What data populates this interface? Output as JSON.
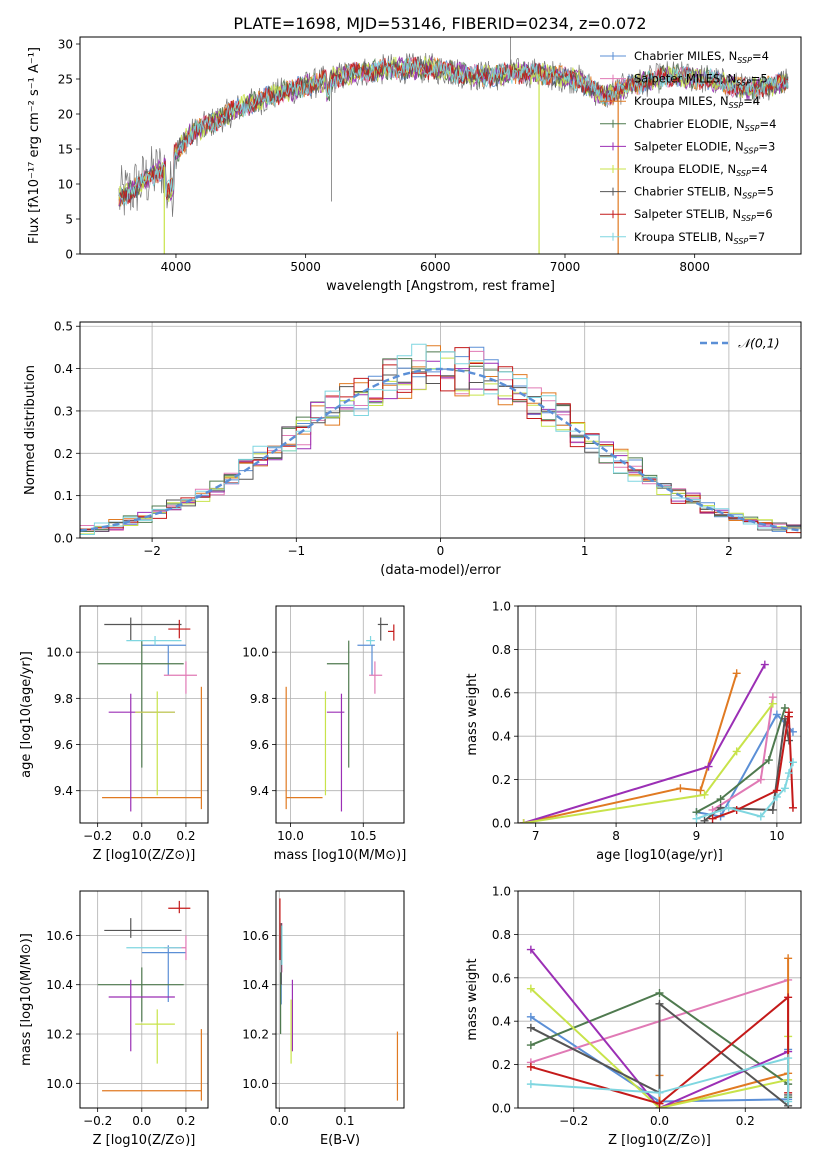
{
  "figure": {
    "title": "PLATE=1698, MJD=53146, FIBERID=0234, z=0.072"
  },
  "colors": {
    "chabrier_miles": "#5b8fd6",
    "salpeter_miles": "#e07ab5",
    "kroupa_miles": "#e07a22",
    "chabrier_elodie": "#4f7a4f",
    "salpeter_elodie": "#9b2fb5",
    "kroupa_elodie": "#c8e34a",
    "chabrier_stelib": "#555555",
    "salpeter_stelib": "#c41a1a",
    "kroupa_stelib": "#7fd6e0",
    "gaussian": "#5b8fd6",
    "grid": "#b0b0b0"
  },
  "chart_data": [
    {
      "id": "spectrum",
      "type": "line",
      "title": "PLATE=1698, MJD=53146, FIBERID=0234, z=0.072",
      "xlabel": "wavelength [Angstrom, rest frame]",
      "ylabel": "Flux [fλ10⁻¹⁷ erg cm⁻² s⁻¹ A⁻¹]",
      "xlim": [
        3260,
        8820
      ],
      "ylim": [
        0,
        31
      ],
      "xticks": [
        4000,
        5000,
        6000,
        7000,
        8000
      ],
      "yticks": [
        0,
        5,
        10,
        15,
        20,
        25,
        30
      ],
      "grid": false,
      "legend_position": "top-right",
      "continuum_nodes": {
        "wavelength": [
          3560,
          3650,
          3800,
          3950,
          4100,
          4300,
          4500,
          4800,
          5100,
          5400,
          5700,
          6000,
          6300,
          6500,
          6700,
          6900,
          7100,
          7300,
          7500,
          7800,
          8100,
          8400,
          8700
        ],
        "flux": [
          8,
          9,
          11,
          13,
          17,
          19,
          21,
          23,
          24.5,
          26,
          26.5,
          26.5,
          25.5,
          25.5,
          26,
          25.5,
          25,
          22.5,
          24,
          25.5,
          25,
          23.5,
          24.5
        ]
      },
      "series": [
        {
          "name": "Chabrier MILES, N_SSP=4",
          "color_key": "chabrier_miles",
          "n_ssp": 4
        },
        {
          "name": "Salpeter MILES, N_SSP=5",
          "color_key": "salpeter_miles",
          "n_ssp": 5
        },
        {
          "name": "Kroupa MILES, N_SSP=4",
          "color_key": "kroupa_miles",
          "n_ssp": 4
        },
        {
          "name": "Chabrier ELODIE, N_SSP=4",
          "color_key": "chabrier_elodie",
          "n_ssp": 4
        },
        {
          "name": "Salpeter ELODIE, N_SSP=3",
          "color_key": "salpeter_elodie",
          "n_ssp": 3
        },
        {
          "name": "Kroupa ELODIE, N_SSP=4",
          "color_key": "kroupa_elodie",
          "n_ssp": 4
        },
        {
          "name": "Chabrier STELIB, N_SSP=5",
          "color_key": "chabrier_stelib",
          "n_ssp": 5
        },
        {
          "name": "Salpeter STELIB, N_SSP=6",
          "color_key": "salpeter_stelib",
          "n_ssp": 6
        },
        {
          "name": "Kroupa STELIB, N_SSP=7",
          "color_key": "kroupa_stelib",
          "n_ssp": 7
        }
      ],
      "model_drop_lines": [
        {
          "x": 3910,
          "color_key": "kroupa_elodie"
        },
        {
          "x": 6800,
          "color_key": "kroupa_elodie"
        },
        {
          "x": 7410,
          "color_key": "kroupa_miles"
        }
      ],
      "data_spikes": [
        {
          "x": 5200,
          "y": 7.5
        },
        {
          "x": 6580,
          "y": 31
        }
      ]
    },
    {
      "id": "residuals",
      "type": "histogram",
      "xlabel": "(data-model)/error",
      "ylabel": "Normed distribution",
      "xlim": [
        -2.5,
        2.5
      ],
      "ylim": [
        0,
        0.51
      ],
      "xticks": [
        -2,
        -1,
        0,
        1,
        2
      ],
      "yticks": [
        0.0,
        0.1,
        0.2,
        0.3,
        0.4,
        0.5
      ],
      "grid": true,
      "bin_width": 0.1,
      "legend": [
        {
          "label": "𝒩(0,1)",
          "style": "dashed",
          "color_key": "gaussian"
        }
      ],
      "legend_position": "top-right",
      "gaussian": {
        "mean": 0,
        "sigma": 1
      }
    },
    {
      "id": "age_vs_Z",
      "type": "errorbar",
      "xlabel": "Z [log10(Z/Z⊙)]",
      "ylabel": "age [log10(age/yr)]",
      "xlim": [
        -0.28,
        0.3
      ],
      "ylim": [
        9.26,
        10.2
      ],
      "xticks": [
        -0.2,
        0.0,
        0.2
      ],
      "yticks": [
        9.4,
        9.6,
        9.8,
        10.0
      ],
      "grid": true,
      "points": [
        {
          "series": "chabrier_miles",
          "x": 0.12,
          "y": 10.03,
          "xerr": [
            0.12,
            0.08
          ],
          "yerr": [
            0.13,
            0.0
          ]
        },
        {
          "series": "salpeter_miles",
          "x": 0.2,
          "y": 9.9,
          "xerr": [
            0.1,
            0.05
          ],
          "yerr": [
            0.08,
            0.06
          ]
        },
        {
          "series": "kroupa_miles",
          "x": 0.27,
          "y": 9.37,
          "xerr": [
            0.45,
            0.0
          ],
          "yerr": [
            0.05,
            0.48
          ]
        },
        {
          "series": "chabrier_elodie",
          "x": 0.0,
          "y": 9.95,
          "xerr": [
            0.2,
            0.19
          ],
          "yerr": [
            0.45,
            0.1
          ]
        },
        {
          "series": "salpeter_elodie",
          "x": -0.05,
          "y": 9.74,
          "xerr": [
            0.1,
            0.2
          ],
          "yerr": [
            0.43,
            0.08
          ]
        },
        {
          "series": "kroupa_elodie",
          "x": 0.07,
          "y": 9.74,
          "xerr": [
            0.1,
            0.08
          ],
          "yerr": [
            0.36,
            0.09
          ]
        },
        {
          "series": "chabrier_stelib",
          "x": -0.05,
          "y": 10.12,
          "xerr": [
            0.12,
            0.23
          ],
          "yerr": [
            0.07,
            0.03
          ]
        },
        {
          "series": "salpeter_stelib",
          "x": 0.17,
          "y": 10.1,
          "xerr": [
            0.05,
            0.05
          ],
          "yerr": [
            0.04,
            0.04
          ]
        },
        {
          "series": "kroupa_stelib",
          "x": 0.06,
          "y": 10.05,
          "xerr": [
            0.13,
            0.12
          ],
          "yerr": [
            0.02,
            0.02
          ]
        }
      ]
    },
    {
      "id": "age_vs_mass",
      "type": "errorbar",
      "xlabel": "mass [log10(M/M⊙)]",
      "ylabel": "",
      "xlim": [
        9.9,
        10.78
      ],
      "ylim": [
        9.26,
        10.2
      ],
      "xticks": [
        10.0,
        10.5
      ],
      "yticks": [
        9.4,
        9.6,
        9.8,
        10.0
      ],
      "grid": true,
      "points": [
        {
          "series": "chabrier_miles",
          "x": 10.56,
          "y": 10.03,
          "xerr": [
            0.1,
            0.02
          ],
          "yerr": [
            0.13,
            0.0
          ]
        },
        {
          "series": "salpeter_miles",
          "x": 10.58,
          "y": 9.9,
          "xerr": [
            0.04,
            0.05
          ],
          "yerr": [
            0.08,
            0.06
          ]
        },
        {
          "series": "kroupa_miles",
          "x": 9.97,
          "y": 9.37,
          "xerr": [
            0.0,
            0.25
          ],
          "yerr": [
            0.05,
            0.48
          ]
        },
        {
          "series": "chabrier_elodie",
          "x": 10.4,
          "y": 9.95,
          "xerr": [
            0.15,
            0.0
          ],
          "yerr": [
            0.45,
            0.1
          ]
        },
        {
          "series": "salpeter_elodie",
          "x": 10.35,
          "y": 9.74,
          "xerr": [
            0.1,
            0.02
          ],
          "yerr": [
            0.43,
            0.08
          ]
        },
        {
          "series": "kroupa_elodie",
          "x": 10.24,
          "y": 9.74,
          "xerr": [
            0.0,
            0.0
          ],
          "yerr": [
            0.36,
            0.09
          ]
        },
        {
          "series": "chabrier_stelib",
          "x": 10.62,
          "y": 10.12,
          "xerr": [
            0.02,
            0.05
          ],
          "yerr": [
            0.07,
            0.03
          ]
        },
        {
          "series": "salpeter_stelib",
          "x": 10.71,
          "y": 10.09,
          "xerr": [
            0.04,
            0.0
          ],
          "yerr": [
            0.04,
            0.03
          ]
        },
        {
          "series": "kroupa_stelib",
          "x": 10.55,
          "y": 10.05,
          "xerr": [
            0.03,
            0.03
          ],
          "yerr": [
            0.02,
            0.02
          ]
        }
      ]
    },
    {
      "id": "weight_vs_age",
      "type": "line",
      "xlabel": "age [log10(age/yr)]",
      "ylabel": "mass weight",
      "xlim": [
        6.78,
        10.3
      ],
      "ylim": [
        0,
        1.0
      ],
      "xticks": [
        7,
        8,
        9,
        10
      ],
      "yticks": [
        0.0,
        0.2,
        0.4,
        0.6,
        0.8,
        1.0
      ],
      "grid": true,
      "series": [
        {
          "series": "chabrier_miles",
          "x": [
            9.0,
            9.3,
            10.0,
            10.2
          ],
          "y": [
            0.05,
            0.03,
            0.5,
            0.42
          ]
        },
        {
          "series": "salpeter_miles",
          "x": [
            9.2,
            9.8,
            9.95
          ],
          "y": [
            0.06,
            0.2,
            0.58
          ]
        },
        {
          "series": "kroupa_miles",
          "x": [
            6.85,
            8.8,
            9.05,
            9.5
          ],
          "y": [
            0.0,
            0.16,
            0.15,
            0.69
          ]
        },
        {
          "series": "chabrier_elodie",
          "x": [
            9.0,
            9.3,
            9.9,
            10.1
          ],
          "y": [
            0.05,
            0.11,
            0.29,
            0.53
          ]
        },
        {
          "series": "salpeter_elodie",
          "x": [
            6.85,
            9.15,
            9.85
          ],
          "y": [
            0.0,
            0.26,
            0.73
          ]
        },
        {
          "series": "kroupa_elodie",
          "x": [
            6.85,
            9.1,
            9.5,
            9.95
          ],
          "y": [
            0.0,
            0.13,
            0.33,
            0.55
          ]
        },
        {
          "series": "chabrier_stelib",
          "x": [
            9.1,
            9.3,
            9.95,
            10.1,
            10.15
          ],
          "y": [
            0.01,
            0.07,
            0.06,
            0.48,
            0.38
          ]
        },
        {
          "series": "salpeter_stelib",
          "x": [
            9.2,
            9.5,
            10.0,
            10.15,
            10.15,
            10.2
          ],
          "y": [
            0.02,
            0.06,
            0.15,
            0.51,
            0.49,
            0.07
          ]
        },
        {
          "series": "kroupa_stelib",
          "x": [
            9.0,
            9.4,
            9.8,
            10.0,
            10.1,
            10.15,
            10.2
          ],
          "y": [
            0.02,
            0.07,
            0.03,
            0.12,
            0.16,
            0.23,
            0.28
          ]
        }
      ]
    },
    {
      "id": "mass_vs_Z",
      "type": "errorbar",
      "xlabel": "Z [log10(Z/Z⊙)]",
      "ylabel": "mass [log10(M/M⊙)]",
      "xlim": [
        -0.28,
        0.3
      ],
      "ylim": [
        9.9,
        10.78
      ],
      "xticks": [
        -0.2,
        0.0,
        0.2
      ],
      "yticks": [
        10.0,
        10.2,
        10.4,
        10.6
      ],
      "grid": true,
      "points": [
        {
          "series": "chabrier_miles",
          "x": 0.12,
          "y": 10.53,
          "xerr": [
            0.12,
            0.08
          ],
          "yerr": [
            0.2,
            0.03
          ]
        },
        {
          "series": "salpeter_miles",
          "x": 0.2,
          "y": 10.55,
          "xerr": [
            0.1,
            0.0
          ],
          "yerr": [
            0.05,
            0.05
          ]
        },
        {
          "series": "kroupa_miles",
          "x": 0.27,
          "y": 9.97,
          "xerr": [
            0.45,
            0.0
          ],
          "yerr": [
            0.04,
            0.25
          ]
        },
        {
          "series": "chabrier_elodie",
          "x": 0.0,
          "y": 10.4,
          "xerr": [
            0.2,
            0.19
          ],
          "yerr": [
            0.15,
            0.07
          ]
        },
        {
          "series": "salpeter_elodie",
          "x": -0.05,
          "y": 10.35,
          "xerr": [
            0.1,
            0.2
          ],
          "yerr": [
            0.22,
            0.07
          ]
        },
        {
          "series": "kroupa_elodie",
          "x": 0.07,
          "y": 10.24,
          "xerr": [
            0.1,
            0.08
          ],
          "yerr": [
            0.16,
            0.06
          ]
        },
        {
          "series": "chabrier_stelib",
          "x": -0.05,
          "y": 10.62,
          "xerr": [
            0.12,
            0.23
          ],
          "yerr": [
            0.03,
            0.05
          ]
        },
        {
          "series": "salpeter_stelib",
          "x": 0.17,
          "y": 10.71,
          "xerr": [
            0.05,
            0.05
          ],
          "yerr": [
            0.02,
            0.03
          ]
        },
        {
          "series": "kroupa_stelib",
          "x": 0.06,
          "y": 10.55,
          "xerr": [
            0.13,
            0.12
          ],
          "yerr": [
            0.0,
            0.0
          ]
        }
      ]
    },
    {
      "id": "mass_vs_ebv",
      "type": "errorbar",
      "xlabel": "E(B-V)",
      "ylabel": "",
      "xlim": [
        -0.005,
        0.19
      ],
      "ylim": [
        9.9,
        10.78
      ],
      "xticks": [
        0.0,
        0.1
      ],
      "yticks": [
        10.0,
        10.2,
        10.4,
        10.6
      ],
      "grid": true,
      "points": [
        {
          "series": "chabrier_miles",
          "x": 0.003,
          "y": 10.5,
          "xerr": [
            0,
            0
          ],
          "yerr": [
            0.18,
            0.1
          ]
        },
        {
          "series": "salpeter_miles",
          "x": 0.004,
          "y": 10.55,
          "xerr": [
            0,
            0
          ],
          "yerr": [
            0.1,
            0.1
          ]
        },
        {
          "series": "kroupa_miles",
          "x": 0.18,
          "y": 10.07,
          "xerr": [
            0,
            0
          ],
          "yerr": [
            0.14,
            0.14
          ]
        },
        {
          "series": "chabrier_elodie",
          "x": 0.002,
          "y": 10.35,
          "xerr": [
            0,
            0
          ],
          "yerr": [
            0.15,
            0.1
          ]
        },
        {
          "series": "salpeter_elodie",
          "x": 0.02,
          "y": 10.28,
          "xerr": [
            0,
            0
          ],
          "yerr": [
            0.15,
            0.14
          ]
        },
        {
          "series": "kroupa_elodie",
          "x": 0.018,
          "y": 10.2,
          "xerr": [
            0,
            0
          ],
          "yerr": [
            0.12,
            0.14
          ]
        },
        {
          "series": "chabrier_stelib",
          "x": 0.003,
          "y": 10.5,
          "xerr": [
            0,
            0
          ],
          "yerr": [
            0.1,
            0.15
          ]
        },
        {
          "series": "salpeter_stelib",
          "x": 0.001,
          "y": 10.6,
          "xerr": [
            0,
            0
          ],
          "yerr": [
            0.1,
            0.15
          ]
        },
        {
          "series": "kroupa_stelib",
          "x": 0.004,
          "y": 10.56,
          "xerr": [
            0,
            0
          ],
          "yerr": [
            0.08,
            0.08
          ]
        }
      ]
    },
    {
      "id": "weight_vs_Z",
      "type": "line",
      "xlabel": "Z [log10(Z/Z⊙)]",
      "ylabel": "mass weight",
      "xlim": [
        -0.33,
        0.33
      ],
      "ylim": [
        0,
        1.0
      ],
      "xticks": [
        -0.2,
        0.0,
        0.2
      ],
      "yticks": [
        0.0,
        0.2,
        0.4,
        0.6,
        0.8,
        1.0
      ],
      "grid": true,
      "series": [
        {
          "series": "chabrier_miles",
          "x": [
            -0.3,
            0.0,
            0.3,
            0.3
          ],
          "y": [
            0.42,
            0.03,
            0.04,
            0.27
          ]
        },
        {
          "series": "salpeter_miles",
          "x": [
            -0.3,
            0.3
          ],
          "y": [
            0.21,
            0.59
          ]
        },
        {
          "series": "kroupa_miles",
          "x": [
            0.0,
            0.0,
            0.3,
            0.3
          ],
          "y": [
            0.15,
            0.0,
            0.16,
            0.69
          ]
        },
        {
          "series": "chabrier_elodie",
          "x": [
            -0.3,
            0.0,
            0.3,
            0.3
          ],
          "y": [
            0.29,
            0.53,
            0.11,
            0.05
          ]
        },
        {
          "series": "salpeter_elodie",
          "x": [
            -0.3,
            0.0,
            0.3
          ],
          "y": [
            0.73,
            0.0,
            0.26
          ]
        },
        {
          "series": "kroupa_elodie",
          "x": [
            -0.3,
            0.0,
            0.3,
            0.3
          ],
          "y": [
            0.55,
            0.0,
            0.13,
            0.33
          ]
        },
        {
          "series": "chabrier_stelib",
          "x": [
            -0.3,
            0.0,
            0.0,
            0.3,
            0.3
          ],
          "y": [
            0.37,
            0.07,
            0.48,
            0.01,
            0.06
          ]
        },
        {
          "series": "salpeter_stelib",
          "x": [
            -0.3,
            0.0,
            0.3,
            0.3
          ],
          "y": [
            0.19,
            0.02,
            0.51,
            0.07
          ]
        },
        {
          "series": "kroupa_stelib",
          "x": [
            -0.3,
            0.0,
            0.3,
            0.3
          ],
          "y": [
            0.11,
            0.07,
            0.23,
            0.03
          ]
        }
      ]
    }
  ]
}
